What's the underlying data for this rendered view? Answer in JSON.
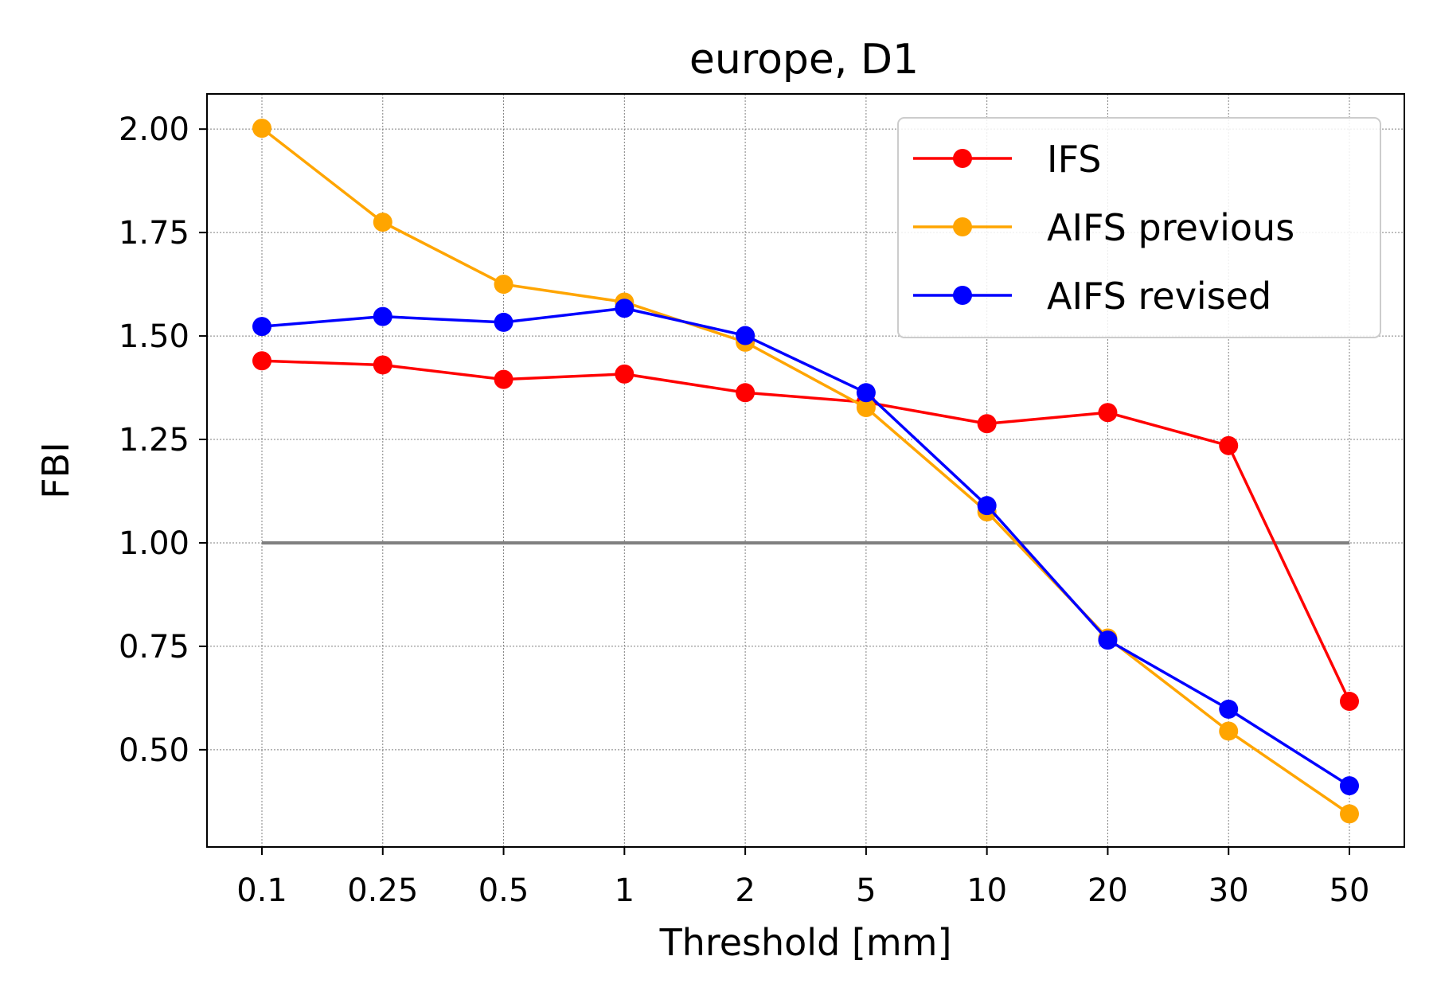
{
  "chart_data": {
    "type": "line",
    "title": "europe, D1",
    "xlabel": "Threshold [mm]",
    "ylabel": "FBI",
    "categories": [
      "0.1",
      "0.25",
      "0.5",
      "1",
      "2",
      "5",
      "10",
      "20",
      "30",
      "50"
    ],
    "yticks": [
      "0.50",
      "0.75",
      "1.00",
      "1.25",
      "1.50",
      "1.75",
      "2.00"
    ],
    "ytick_values": [
      0.5,
      0.75,
      1.0,
      1.25,
      1.5,
      1.75,
      2.0
    ],
    "ylim": [
      0.265,
      2.085
    ],
    "grid": true,
    "legend_position": "top-right",
    "reference_line": {
      "value": 1.0,
      "color": "#808080"
    },
    "series": [
      {
        "name": "IFS",
        "color": "#ff0000",
        "values": [
          1.44,
          1.43,
          1.395,
          1.408,
          1.363,
          1.34,
          1.288,
          1.315,
          1.235,
          0.617
        ]
      },
      {
        "name": "AIFS previous",
        "color": "#ffa500",
        "values": [
          2.002,
          1.775,
          1.625,
          1.582,
          1.485,
          1.327,
          1.075,
          0.77,
          0.545,
          0.345
        ]
      },
      {
        "name": "AIFS revised",
        "color": "#0000ff",
        "values": [
          1.523,
          1.547,
          1.533,
          1.567,
          1.501,
          1.363,
          1.09,
          0.765,
          0.598,
          0.413
        ]
      }
    ]
  }
}
